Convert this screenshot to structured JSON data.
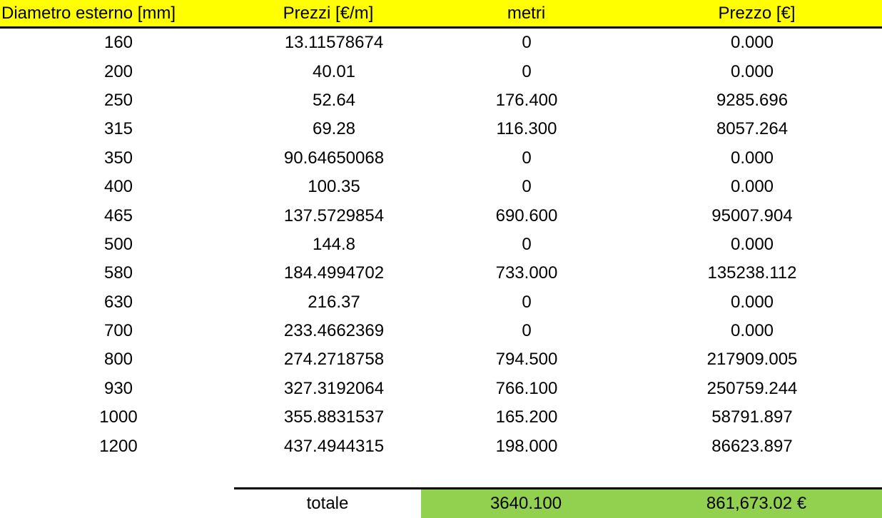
{
  "table": {
    "headers": [
      "Diametro esterno [mm]",
      "Prezzi [€/m]",
      "metri",
      "Prezzo [€]"
    ],
    "rows": [
      [
        "160",
        "13.11578674",
        "0",
        "0.000"
      ],
      [
        "200",
        "40.01",
        "0",
        "0.000"
      ],
      [
        "250",
        "52.64",
        "176.400",
        "9285.696"
      ],
      [
        "315",
        "69.28",
        "116.300",
        "8057.264"
      ],
      [
        "350",
        "90.64650068",
        "0",
        "0.000"
      ],
      [
        "400",
        "100.35",
        "0",
        "0.000"
      ],
      [
        "465",
        "137.5729854",
        "690.600",
        "95007.904"
      ],
      [
        "500",
        "144.8",
        "0",
        "0.000"
      ],
      [
        "580",
        "184.4994702",
        "733.000",
        "135238.112"
      ],
      [
        "630",
        "216.37",
        "0",
        "0.000"
      ],
      [
        "700",
        "233.4662369",
        "0",
        "0.000"
      ],
      [
        "800",
        "274.2718758",
        "794.500",
        "217909.005"
      ],
      [
        "930",
        "327.3192064",
        "766.100",
        "250759.244"
      ],
      [
        "1000",
        "355.8831537",
        "165.200",
        "58791.897"
      ],
      [
        "1200",
        "437.4944315",
        "198.000",
        "86623.897"
      ]
    ],
    "total": {
      "label": "totale",
      "metri": "3640.100",
      "prezzo": "861,673.02 €"
    }
  },
  "colors": {
    "header_bg": "#ffff00",
    "total_bg": "#92d050",
    "border": "#000000"
  }
}
